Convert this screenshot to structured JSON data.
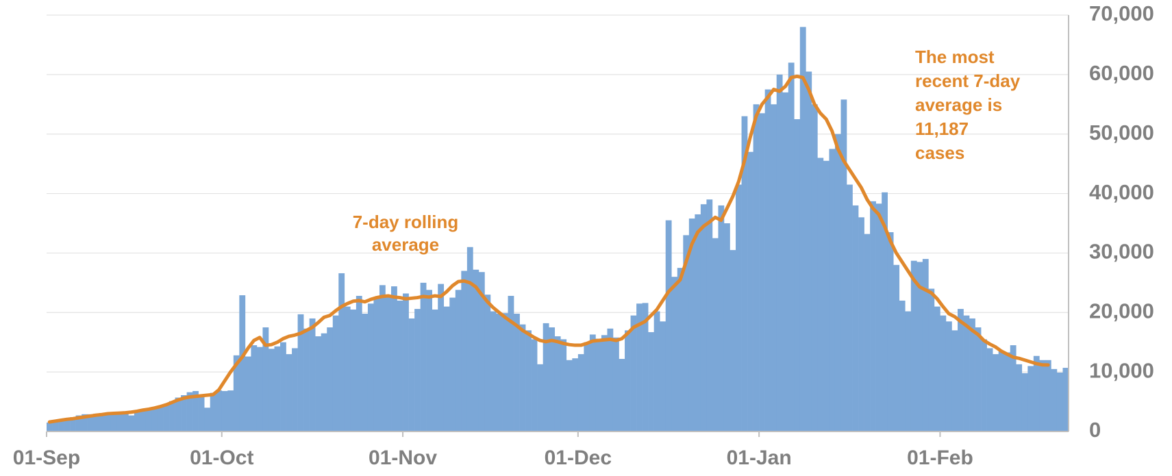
{
  "chart_data": {
    "type": "bar",
    "categories": [
      "01-Sep",
      null,
      null,
      null,
      null,
      null,
      null,
      null,
      null,
      null,
      null,
      null,
      null,
      null,
      null,
      null,
      null,
      null,
      null,
      null,
      null,
      null,
      null,
      null,
      null,
      null,
      null,
      null,
      null,
      null,
      "01-Oct",
      null,
      null,
      null,
      null,
      null,
      null,
      null,
      null,
      null,
      null,
      null,
      null,
      null,
      null,
      null,
      null,
      null,
      null,
      null,
      null,
      null,
      null,
      null,
      null,
      null,
      null,
      null,
      null,
      null,
      null,
      "01-Nov",
      null,
      null,
      null,
      null,
      null,
      null,
      null,
      null,
      null,
      null,
      null,
      null,
      null,
      null,
      null,
      null,
      null,
      null,
      null,
      null,
      null,
      null,
      null,
      null,
      null,
      null,
      null,
      null,
      null,
      "01-Dec",
      null,
      null,
      null,
      null,
      null,
      null,
      null,
      null,
      null,
      null,
      null,
      null,
      null,
      null,
      null,
      null,
      null,
      null,
      null,
      null,
      null,
      null,
      null,
      null,
      null,
      null,
      null,
      null,
      null,
      null,
      "01-Jan",
      null,
      null,
      null,
      null,
      null,
      null,
      null,
      null,
      null,
      null,
      null,
      null,
      null,
      null,
      null,
      null,
      null,
      null,
      null,
      null,
      null,
      null,
      null,
      null,
      null,
      null,
      null,
      null,
      null,
      null,
      "01-Feb",
      null,
      null,
      null,
      null,
      null,
      null,
      null,
      null,
      null,
      null,
      null,
      null,
      null,
      null,
      null,
      null,
      null,
      null,
      null,
      null,
      null
    ],
    "series": [
      {
        "type": "bar",
        "color": "#7ba7d7",
        "values": [
          1500,
          1700,
          2000,
          2200,
          2400,
          2700,
          2900,
          2900,
          3000,
          3100,
          3200,
          2900,
          3300,
          3400,
          2700,
          3500,
          3700,
          3600,
          4000,
          4100,
          4500,
          5100,
          5700,
          6100,
          6600,
          6800,
          5800,
          4000,
          6500,
          6900,
          6800,
          6900,
          12800,
          22900,
          12600,
          14500,
          14200,
          17500,
          13900,
          14300,
          15000,
          13000,
          14000,
          19700,
          17300,
          19000,
          16000,
          16500,
          17500,
          19500,
          26600,
          21000,
          20500,
          22800,
          19800,
          21500,
          22500,
          24600,
          22700,
          24400,
          22000,
          23200,
          19000,
          20600,
          25000,
          23800,
          20500,
          24800,
          21000,
          22500,
          23800,
          27000,
          31000,
          27200,
          26800,
          23000,
          20200,
          19800,
          19900,
          22800,
          19800,
          18000,
          17000,
          15500,
          11300,
          18200,
          17500,
          16000,
          15500,
          12000,
          12300,
          13000,
          15000,
          16300,
          15600,
          16200,
          17300,
          15800,
          12200,
          17000,
          19500,
          21500,
          21600,
          16700,
          20200,
          18500,
          35500,
          26000,
          27500,
          33000,
          35800,
          36500,
          38200,
          39000,
          32500,
          38000,
          35000,
          30500,
          41500,
          53000,
          47000,
          55000,
          53500,
          57500,
          55000,
          60000,
          57000,
          62000,
          52500,
          68000,
          60500,
          55000,
          46000,
          45500,
          47500,
          50000,
          55800,
          41500,
          38000,
          36000,
          33200,
          38700,
          38300,
          40200,
          33500,
          28000,
          22000,
          20200,
          28700,
          28500,
          29000,
          24000,
          21000,
          19500,
          18500,
          17000,
          20600,
          19500,
          19000,
          17500,
          15500,
          14000,
          13000,
          13500,
          13300,
          14500,
          11300,
          9800,
          11000,
          12700,
          12000,
          12000,
          10500,
          9900,
          10700
        ]
      },
      {
        "type": "line",
        "color": "#e0882c",
        "values": [
          1600,
          1750,
          1900,
          2050,
          2150,
          2300,
          2450,
          2600,
          2750,
          2850,
          3000,
          3050,
          3100,
          3150,
          3250,
          3400,
          3600,
          3750,
          3950,
          4200,
          4500,
          4900,
          5300,
          5600,
          5800,
          5900,
          6000,
          6100,
          6200,
          7000,
          8500,
          10000,
          11300,
          12500,
          14000,
          15300,
          15800,
          14500,
          14600,
          15000,
          15600,
          16000,
          16200,
          16500,
          17000,
          17500,
          18300,
          19200,
          19500,
          20300,
          21000,
          21500,
          21900,
          22000,
          21800,
          22200,
          22500,
          22700,
          22800,
          22600,
          22500,
          22300,
          22400,
          22500,
          22700,
          22600,
          22800,
          22700,
          23500,
          24500,
          25200,
          25300,
          25000,
          24300,
          23000,
          21800,
          20800,
          20000,
          19200,
          18500,
          17800,
          17000,
          16400,
          15800,
          15300,
          15100,
          15300,
          15100,
          14800,
          14600,
          14500,
          14500,
          14800,
          15200,
          15300,
          15400,
          15500,
          15300,
          15600,
          16500,
          17500,
          18000,
          18500,
          19500,
          20500,
          22000,
          23500,
          24500,
          25500,
          28500,
          31500,
          33500,
          34500,
          35200,
          36000,
          35500,
          37500,
          39500,
          42000,
          45500,
          49500,
          53000,
          55000,
          56200,
          57500,
          57200,
          58000,
          59500,
          59700,
          59500,
          57500,
          55000,
          53500,
          52500,
          50500,
          47500,
          45500,
          44000,
          42500,
          41000,
          39000,
          37500,
          36500,
          34500,
          32000,
          30000,
          28500,
          27000,
          25500,
          24300,
          23800,
          23300,
          22300,
          21000,
          19800,
          19300,
          18500,
          17800,
          17000,
          16300,
          15300,
          14700,
          14200,
          13500,
          13000,
          12500,
          12300,
          12000,
          11700,
          11400,
          11200,
          11187,
          null,
          null,
          null
        ]
      }
    ],
    "ylim": [
      0,
      70000
    ],
    "yticks": [
      0,
      {
        "value": 10000,
        "label": "10,000"
      },
      {
        "value": 20000,
        "label": "20,000"
      },
      {
        "value": 30000,
        "label": "30,000"
      },
      {
        "value": 40000,
        "label": "40,000"
      },
      {
        "value": 50000,
        "label": "50,000"
      },
      {
        "value": 60000,
        "label": "60,000"
      },
      {
        "value": 70000,
        "label": "70,000"
      }
    ],
    "grid": true,
    "y_axis_side": "right",
    "annotations": [
      {
        "lines": [
          "7-day rolling",
          "average"
        ],
        "color": "#e0882c"
      },
      {
        "lines": [
          "The most",
          "recent 7-day",
          "average is",
          "11,187",
          "cases"
        ],
        "color": "#e0882c"
      }
    ]
  }
}
